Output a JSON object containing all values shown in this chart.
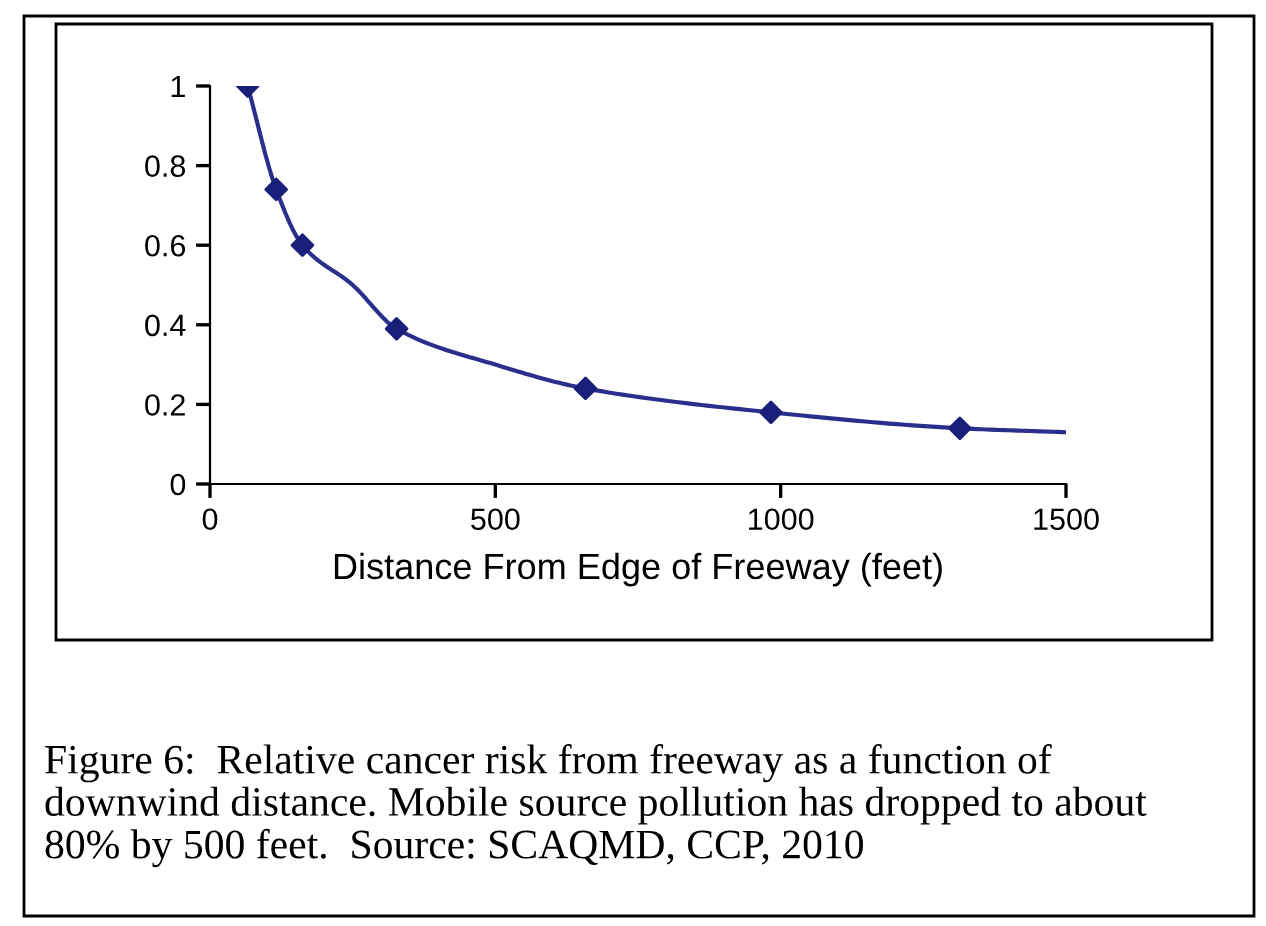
{
  "chart_data": {
    "type": "scatter",
    "xlabel": "Distance From Edge of Freeway (feet)",
    "series": [
      {
        "type": "line",
        "color": "#2b2f8c",
        "marker": "none",
        "line_style": "solid",
        "x": [
          66,
          116,
          162,
          250,
          327,
          500,
          658,
          983,
          1314,
          1500
        ],
        "values": [
          1.0,
          0.74,
          0.6,
          0.5,
          0.39,
          0.3,
          0.24,
          0.18,
          0.14,
          0.13
        ]
      },
      {
        "type": "scatter",
        "color": "#1a1f7a",
        "marker": "diamond",
        "x": [
          66,
          116,
          162,
          327,
          658,
          983,
          1314
        ],
        "values": [
          1.0,
          0.74,
          0.6,
          0.39,
          0.24,
          0.18,
          0.14
        ]
      }
    ],
    "xlim": [
      0,
      1500
    ],
    "xticks": [
      0,
      500,
      1000,
      1500
    ],
    "ylim": [
      0,
      1
    ],
    "yticks": [
      0,
      0.2,
      0.4,
      0.6,
      0.8,
      1
    ],
    "grid": false,
    "legend": false,
    "annotations": [
      "Figure 6:  Relative cancer risk from freeway as a function of downwind distance. Mobile source pollution has dropped to about 80% by 500 feet.  Source: SCAQMD, CCP, 2010"
    ]
  }
}
